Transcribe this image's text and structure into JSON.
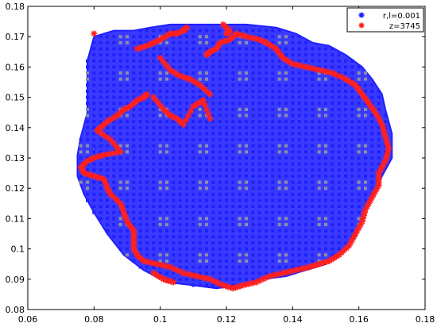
{
  "chart_data": {
    "type": "scatter",
    "title": "",
    "xlabel": "",
    "ylabel": "",
    "xlim": [
      0.06,
      0.18
    ],
    "ylim": [
      0.08,
      0.18
    ],
    "xticks": [
      "0.06",
      "0.08",
      "0.1",
      "0.12",
      "0.14",
      "0.16",
      "0.18"
    ],
    "yticks": [
      "0.08",
      "0.09",
      "0.1",
      "0.11",
      "0.12",
      "0.13",
      "0.14",
      "0.15",
      "0.16",
      "0.17",
      "0.18"
    ],
    "grid": false,
    "legend_position": "top-right",
    "series": [
      {
        "name": "r,l=0.001",
        "marker": "asterisk",
        "color": "#1f1fff",
        "region_polygon": [
          [
            0.092,
            0.172
          ],
          [
            0.097,
            0.173
          ],
          [
            0.103,
            0.174
          ],
          [
            0.11,
            0.174
          ],
          [
            0.118,
            0.174
          ],
          [
            0.126,
            0.174
          ],
          [
            0.135,
            0.173
          ],
          [
            0.141,
            0.171
          ],
          [
            0.146,
            0.168
          ],
          [
            0.151,
            0.167
          ],
          [
            0.156,
            0.164
          ],
          [
            0.161,
            0.16
          ],
          [
            0.164,
            0.156
          ],
          [
            0.167,
            0.151
          ],
          [
            0.168,
            0.146
          ],
          [
            0.17,
            0.138
          ],
          [
            0.17,
            0.13
          ],
          [
            0.167,
            0.124
          ],
          [
            0.164,
            0.117
          ],
          [
            0.161,
            0.11
          ],
          [
            0.159,
            0.104
          ],
          [
            0.155,
            0.099
          ],
          [
            0.15,
            0.095
          ],
          [
            0.144,
            0.093
          ],
          [
            0.138,
            0.091
          ],
          [
            0.131,
            0.09
          ],
          [
            0.124,
            0.088
          ],
          [
            0.117,
            0.087
          ],
          [
            0.11,
            0.088
          ],
          [
            0.102,
            0.089
          ],
          [
            0.095,
            0.093
          ],
          [
            0.089,
            0.098
          ],
          [
            0.084,
            0.105
          ],
          [
            0.08,
            0.112
          ],
          [
            0.077,
            0.118
          ],
          [
            0.075,
            0.124
          ],
          [
            0.075,
            0.131
          ],
          [
            0.076,
            0.137
          ],
          [
            0.078,
            0.145
          ],
          [
            0.078,
            0.153
          ],
          [
            0.078,
            0.162
          ],
          [
            0.08,
            0.17
          ],
          [
            0.086,
            0.172
          ]
        ]
      },
      {
        "name": "z=3745",
        "marker": "asterisk",
        "color": "#ff2020",
        "points": [
          [
            0.08,
            0.171
          ],
          [
            0.093,
            0.166
          ],
          [
            0.096,
            0.167
          ],
          [
            0.098,
            0.168
          ],
          [
            0.1,
            0.169
          ],
          [
            0.103,
            0.171
          ],
          [
            0.105,
            0.171
          ],
          [
            0.107,
            0.172
          ],
          [
            0.108,
            0.173
          ],
          [
            0.1,
            0.163
          ],
          [
            0.103,
            0.159
          ],
          [
            0.106,
            0.157
          ],
          [
            0.109,
            0.156
          ],
          [
            0.112,
            0.154
          ],
          [
            0.115,
            0.151
          ],
          [
            0.096,
            0.151
          ],
          [
            0.095,
            0.15
          ],
          [
            0.093,
            0.149
          ],
          [
            0.091,
            0.147
          ],
          [
            0.089,
            0.146
          ],
          [
            0.087,
            0.144
          ],
          [
            0.084,
            0.142
          ],
          [
            0.082,
            0.14
          ],
          [
            0.081,
            0.139
          ],
          [
            0.085,
            0.136
          ],
          [
            0.088,
            0.132
          ],
          [
            0.083,
            0.131
          ],
          [
            0.08,
            0.13
          ],
          [
            0.078,
            0.129
          ],
          [
            0.076,
            0.127
          ],
          [
            0.077,
            0.125
          ],
          [
            0.08,
            0.124
          ],
          [
            0.083,
            0.123
          ],
          [
            0.084,
            0.12
          ],
          [
            0.085,
            0.118
          ],
          [
            0.088,
            0.115
          ],
          [
            0.089,
            0.112
          ],
          [
            0.09,
            0.109
          ],
          [
            0.092,
            0.106
          ],
          [
            0.092,
            0.103
          ],
          [
            0.092,
            0.1
          ],
          [
            0.093,
            0.098
          ],
          [
            0.095,
            0.096
          ],
          [
            0.099,
            0.095
          ],
          [
            0.103,
            0.094
          ],
          [
            0.107,
            0.092
          ],
          [
            0.111,
            0.091
          ],
          [
            0.115,
            0.09
          ],
          [
            0.119,
            0.088
          ],
          [
            0.122,
            0.087
          ],
          [
            0.125,
            0.088
          ],
          [
            0.129,
            0.089
          ],
          [
            0.133,
            0.091
          ],
          [
            0.137,
            0.092
          ],
          [
            0.141,
            0.093
          ],
          [
            0.145,
            0.094
          ],
          [
            0.148,
            0.095
          ],
          [
            0.151,
            0.096
          ],
          [
            0.154,
            0.098
          ],
          [
            0.157,
            0.101
          ],
          [
            0.159,
            0.105
          ],
          [
            0.161,
            0.109
          ],
          [
            0.162,
            0.113
          ],
          [
            0.164,
            0.117
          ],
          [
            0.166,
            0.121
          ],
          [
            0.166,
            0.125
          ],
          [
            0.168,
            0.129
          ],
          [
            0.169,
            0.133
          ],
          [
            0.168,
            0.137
          ],
          [
            0.167,
            0.141
          ],
          [
            0.165,
            0.145
          ],
          [
            0.163,
            0.148
          ],
          [
            0.161,
            0.151
          ],
          [
            0.159,
            0.154
          ],
          [
            0.156,
            0.156
          ],
          [
            0.152,
            0.158
          ],
          [
            0.148,
            0.159
          ],
          [
            0.144,
            0.16
          ],
          [
            0.14,
            0.161
          ],
          [
            0.137,
            0.163
          ],
          [
            0.135,
            0.166
          ],
          [
            0.132,
            0.168
          ],
          [
            0.13,
            0.169
          ],
          [
            0.126,
            0.17
          ],
          [
            0.123,
            0.171
          ],
          [
            0.121,
            0.169
          ],
          [
            0.118,
            0.168
          ],
          [
            0.117,
            0.166
          ],
          [
            0.115,
            0.165
          ],
          [
            0.114,
            0.164
          ],
          [
            0.119,
            0.174
          ],
          [
            0.121,
            0.172
          ],
          [
            0.12,
            0.171
          ],
          [
            0.098,
            0.15
          ],
          [
            0.101,
            0.146
          ],
          [
            0.103,
            0.144
          ],
          [
            0.105,
            0.143
          ],
          [
            0.107,
            0.141
          ],
          [
            0.11,
            0.147
          ],
          [
            0.113,
            0.149
          ],
          [
            0.115,
            0.143
          ],
          [
            0.098,
            0.092
          ],
          [
            0.101,
            0.09
          ],
          [
            0.104,
            0.089
          ]
        ]
      }
    ]
  }
}
